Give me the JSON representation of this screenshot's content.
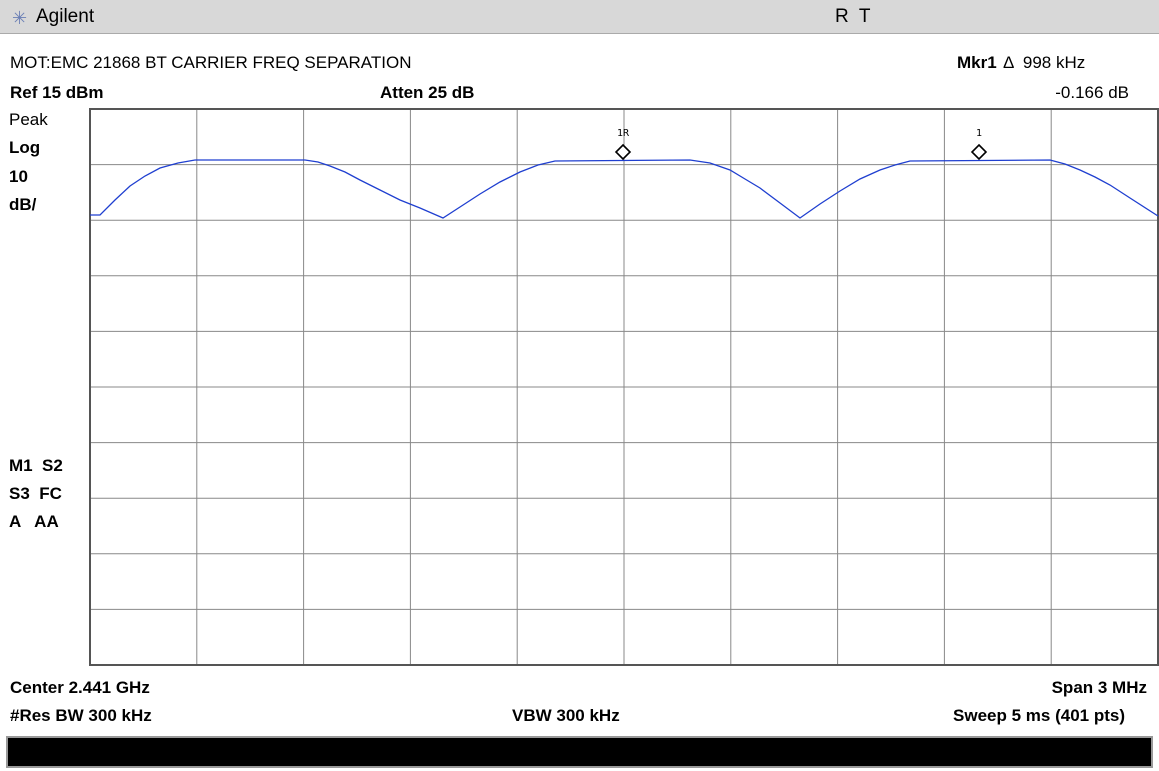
{
  "header": {
    "brand": "Agilent",
    "status": "R  T"
  },
  "title": "MOT:EMC 21868 BT CARRIER FREQ SEPARATION",
  "marker": {
    "name": "Mkr1",
    "delta": "Δ  998 kHz",
    "level": "-0.166 dB"
  },
  "ref": "Ref 15 dBm",
  "atten": "Atten 25 dB",
  "left_panel": [
    "Peak",
    "Log",
    "10",
    "dB/"
  ],
  "status_panel": [
    "M1  S2",
    "S3  FC",
    "A   AA"
  ],
  "trace_markers": [
    "1R",
    "1"
  ],
  "footer": {
    "center": "Center 2.441 GHz",
    "span": "Span 3 MHz",
    "rbw": "#Res BW 300 kHz",
    "vbw": "VBW 300 kHz",
    "sweep": "Sweep 5 ms (401 pts)"
  }
}
